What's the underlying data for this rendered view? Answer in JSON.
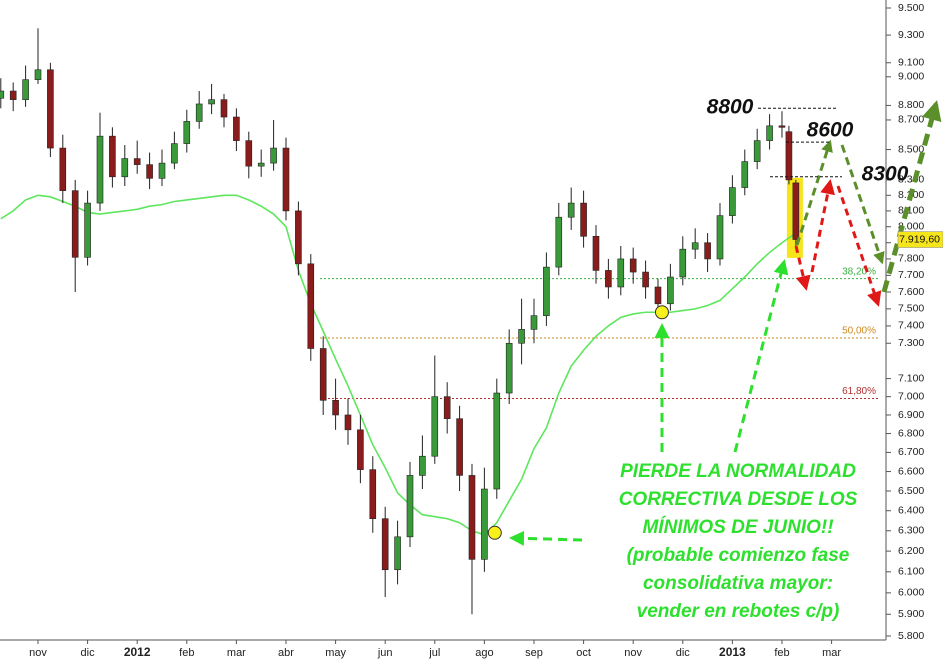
{
  "chart_data": {
    "type": "candlestick",
    "log_scale": true,
    "up_color": "#3a9a3a",
    "down_color": "#8b1c1c",
    "xlim": [
      -0.766,
      17.077
    ],
    "xticks": [
      {
        "value": 0,
        "label": "nov"
      },
      {
        "value": 1,
        "label": "dic"
      },
      {
        "value": 2,
        "label": "2012"
      },
      {
        "value": 3,
        "label": "feb"
      },
      {
        "value": 4,
        "label": "mar"
      },
      {
        "value": 5,
        "label": "abr"
      },
      {
        "value": 6,
        "label": "may"
      },
      {
        "value": 7,
        "label": "jun"
      },
      {
        "value": 8,
        "label": "jul"
      },
      {
        "value": 9,
        "label": "ago"
      },
      {
        "value": 10,
        "label": "sep"
      },
      {
        "value": 11,
        "label": "oct"
      },
      {
        "value": 12,
        "label": "nov"
      },
      {
        "value": 13,
        "label": "dic"
      },
      {
        "value": 14,
        "label": "2013"
      },
      {
        "value": 15,
        "label": "feb"
      },
      {
        "value": 16,
        "label": "mar"
      }
    ],
    "ylim": [
      5800,
      9500
    ],
    "yticks": [
      {
        "value": 9500,
        "label": "9.500"
      },
      {
        "value": 9300,
        "label": "9.300"
      },
      {
        "value": 9100,
        "label": "9.100"
      },
      {
        "value": 9000,
        "label": "9.000"
      },
      {
        "value": 8800,
        "label": "8.800"
      },
      {
        "value": 8700,
        "label": "8.700"
      },
      {
        "value": 8500,
        "label": "8.500"
      },
      {
        "value": 8300,
        "label": "8.300"
      },
      {
        "value": 8200,
        "label": "8.200"
      },
      {
        "value": 8100,
        "label": "8.100"
      },
      {
        "value": 8000,
        "label": "8.000"
      },
      {
        "value": 7900,
        "label": "7.900"
      },
      {
        "value": 7800,
        "label": "7.800"
      },
      {
        "value": 7700,
        "label": "7.700"
      },
      {
        "value": 7600,
        "label": "7.600"
      },
      {
        "value": 7500,
        "label": "7.500"
      },
      {
        "value": 7400,
        "label": "7.400"
      },
      {
        "value": 7300,
        "label": "7.300"
      },
      {
        "value": 7100,
        "label": "7.100"
      },
      {
        "value": 7000,
        "label": "7.000"
      },
      {
        "value": 6900,
        "label": "6.900"
      },
      {
        "value": 6800,
        "label": "6.800"
      },
      {
        "value": 6700,
        "label": "6.700"
      },
      {
        "value": 6600,
        "label": "6.600"
      },
      {
        "value": 6500,
        "label": "6.500"
      },
      {
        "value": 6400,
        "label": "6.400"
      },
      {
        "value": 6300,
        "label": "6.300"
      },
      {
        "value": 6200,
        "label": "6.200"
      },
      {
        "value": 6100,
        "label": "6.100"
      },
      {
        "value": 6000,
        "label": "6.000"
      },
      {
        "value": 5900,
        "label": "5.900"
      },
      {
        "value": 5800,
        "label": "5.800"
      }
    ],
    "x": [
      -0.75,
      -0.5,
      -0.25,
      0,
      0.25,
      0.5,
      0.75,
      1,
      1.25,
      1.5,
      1.75,
      2,
      2.25,
      2.5,
      2.75,
      3,
      3.25,
      3.5,
      3.75,
      4,
      4.25,
      4.5,
      4.75,
      5,
      5.25,
      5.5,
      5.75,
      6,
      6.25,
      6.5,
      6.75,
      7,
      7.25,
      7.5,
      7.75,
      8,
      8.25,
      8.5,
      8.75,
      9,
      9.25,
      9.5,
      9.75,
      10,
      10.25,
      10.5,
      10.75,
      11,
      11.25,
      11.5,
      11.75,
      12,
      12.25,
      12.5,
      12.75,
      13,
      13.25,
      13.5,
      13.75,
      14,
      14.25,
      14.5,
      14.75,
      15,
      15.14,
      15.28
    ],
    "open": [
      8850,
      8900,
      8840,
      8980,
      9050,
      8510,
      8230,
      7810,
      8150,
      8590,
      8320,
      8440,
      8400,
      8310,
      8410,
      8540,
      8690,
      8810,
      8840,
      8720,
      8560,
      8390,
      8410,
      8510,
      8100,
      7770,
      7270,
      6980,
      6900,
      6820,
      6610,
      6360,
      6110,
      6270,
      6580,
      6680,
      7000,
      6880,
      6580,
      6160,
      6510,
      7020,
      7300,
      7380,
      7460,
      7750,
      8060,
      8150,
      7940,
      7730,
      7630,
      7800,
      7720,
      7630,
      7530,
      7690,
      7860,
      7900,
      7800,
      8070,
      8250,
      8420,
      8560,
      8660,
      8620,
      8280
    ],
    "high": [
      8990,
      8960,
      9080,
      9350,
      9100,
      8600,
      8300,
      8230,
      8750,
      8650,
      8530,
      8560,
      8480,
      8500,
      8620,
      8770,
      8900,
      8950,
      8880,
      8780,
      8620,
      8500,
      8700,
      8580,
      8160,
      7830,
      7340,
      7100,
      6990,
      6900,
      6680,
      6420,
      6350,
      6650,
      6790,
      7230,
      7080,
      6950,
      6640,
      6620,
      7100,
      7380,
      7560,
      7560,
      7840,
      8150,
      8250,
      8230,
      8010,
      7800,
      7880,
      7870,
      7790,
      7680,
      7770,
      7940,
      7990,
      7960,
      8150,
      8330,
      8500,
      8640,
      8740,
      8760,
      8660,
      8300
    ],
    "low": [
      8780,
      8760,
      8790,
      8950,
      8450,
      8150,
      7600,
      7760,
      8100,
      8250,
      8260,
      8340,
      8240,
      8260,
      8370,
      8480,
      8640,
      8740,
      8650,
      8490,
      8310,
      8320,
      8360,
      8040,
      7700,
      7200,
      6900,
      6820,
      6740,
      6540,
      6290,
      5980,
      6040,
      6220,
      6510,
      6640,
      6800,
      6500,
      5900,
      6100,
      6460,
      6960,
      7180,
      7300,
      7400,
      7700,
      7980,
      7870,
      7650,
      7560,
      7580,
      7650,
      7560,
      7480,
      7490,
      7640,
      7800,
      7720,
      7760,
      8020,
      8200,
      8370,
      8500,
      8580,
      8270,
      7880
    ],
    "close": [
      8900,
      8840,
      8980,
      9050,
      8510,
      8230,
      7810,
      8150,
      8590,
      8320,
      8440,
      8400,
      8310,
      8410,
      8540,
      8690,
      8810,
      8840,
      8720,
      8560,
      8390,
      8410,
      8510,
      8100,
      7770,
      7270,
      6980,
      6900,
      6820,
      6610,
      6360,
      6110,
      6270,
      6580,
      6680,
      7000,
      6880,
      6580,
      6160,
      6510,
      7020,
      7300,
      7380,
      7460,
      7750,
      8060,
      8150,
      7940,
      7730,
      7630,
      7800,
      7720,
      7630,
      7530,
      7690,
      7860,
      7900,
      7800,
      8070,
      8250,
      8420,
      8560,
      8660,
      8650,
      8300,
      7920
    ],
    "ma": {
      "color": "#5ee65e",
      "values": [
        8050,
        8100,
        8170,
        8200,
        8190,
        8160,
        8130,
        8090,
        8080,
        8090,
        8100,
        8110,
        8130,
        8140,
        8160,
        8170,
        8180,
        8190,
        8200,
        8200,
        8170,
        8130,
        8080,
        8000,
        7730,
        7530,
        7370,
        7210,
        7060,
        6900,
        6740,
        6620,
        6490,
        6430,
        6380,
        6370,
        6360,
        6340,
        6300,
        6280,
        6340,
        6450,
        6560,
        6720,
        6830,
        7020,
        7170,
        7260,
        7340,
        7400,
        7450,
        7470,
        7480,
        7480,
        7480,
        7490,
        7500,
        7520,
        7550,
        7620,
        7690,
        7770,
        7840,
        7900,
        7930,
        7960
      ]
    },
    "hlines": [
      {
        "value": 7680,
        "label": "38,20%",
        "color": "#3cb043"
      },
      {
        "value": 7330,
        "label": "50,00%",
        "color": "#d08a1e"
      },
      {
        "value": 6990,
        "label": "61,80%",
        "color": "#b03030"
      }
    ],
    "levels": [
      {
        "value": 8780,
        "label": "8800"
      },
      {
        "value": 8550,
        "label": "8600"
      },
      {
        "value": 8320,
        "label": "8300"
      }
    ],
    "markers": [
      {
        "x": 9.21,
        "y": 6290
      },
      {
        "x": 12.58,
        "y": 7480
      }
    ],
    "last_price": {
      "value": 7919.6,
      "label": "7.919,60"
    },
    "note": [
      "PIERDE LA NORMALIDAD",
      "CORRECTIVA DESDE LOS",
      "MÍNIMOS DE JUNIO!!",
      "(probable comienzo fase",
      "consolidativa mayor:",
      "vender en rebotes c/p)"
    ]
  }
}
